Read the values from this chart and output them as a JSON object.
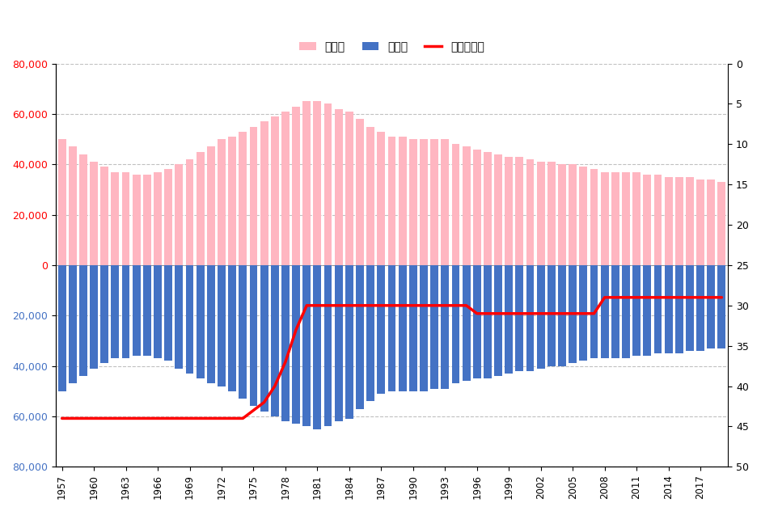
{
  "years": [
    1957,
    1958,
    1959,
    1960,
    1961,
    1962,
    1963,
    1964,
    1965,
    1966,
    1967,
    1968,
    1969,
    1970,
    1971,
    1972,
    1973,
    1974,
    1975,
    1976,
    1977,
    1978,
    1979,
    1980,
    1981,
    1982,
    1983,
    1984,
    1985,
    1986,
    1987,
    1988,
    1989,
    1990,
    1991,
    1992,
    1993,
    1994,
    1995,
    1996,
    1997,
    1998,
    1999,
    2000,
    2001,
    2002,
    2003,
    2004,
    2005,
    2006,
    2007,
    2008,
    2009,
    2010,
    2011,
    2012,
    2013,
    2014,
    2015,
    2016,
    2017,
    2018,
    2019
  ],
  "girls": [
    50000,
    47000,
    44000,
    41000,
    39000,
    37000,
    37000,
    36000,
    36000,
    37000,
    38000,
    40000,
    42000,
    45000,
    47000,
    50000,
    51000,
    53000,
    55000,
    57000,
    59000,
    61000,
    63000,
    65000,
    65000,
    64000,
    62000,
    61000,
    58000,
    55000,
    53000,
    51000,
    51000,
    50000,
    50000,
    50000,
    50000,
    48000,
    47000,
    46000,
    45000,
    44000,
    43000,
    43000,
    42000,
    41000,
    41000,
    40000,
    40000,
    39000,
    38000,
    37000,
    37000,
    37000,
    37000,
    36000,
    36000,
    35000,
    35000,
    35000,
    34000,
    34000,
    33000
  ],
  "boys": [
    50000,
    47000,
    44000,
    41000,
    39000,
    37000,
    37000,
    36000,
    36000,
    37000,
    38000,
    41000,
    43000,
    45000,
    47000,
    48000,
    50000,
    53000,
    56000,
    58000,
    60000,
    62000,
    63000,
    64000,
    65000,
    64000,
    62000,
    61000,
    57000,
    54000,
    51000,
    50000,
    50000,
    50000,
    50000,
    49000,
    49000,
    47000,
    46000,
    45000,
    45000,
    44000,
    43000,
    42000,
    42000,
    41000,
    40000,
    40000,
    39000,
    38000,
    37000,
    37000,
    37000,
    37000,
    36000,
    36000,
    35000,
    35000,
    35000,
    34000,
    34000,
    33000,
    33000
  ],
  "ranking": [
    44,
    44,
    44,
    44,
    44,
    44,
    44,
    44,
    44,
    44,
    44,
    44,
    44,
    44,
    44,
    44,
    44,
    44,
    43,
    42,
    40,
    37,
    33,
    30,
    30,
    30,
    30,
    30,
    30,
    30,
    30,
    30,
    30,
    30,
    30,
    30,
    30,
    30,
    30,
    31,
    31,
    31,
    31,
    31,
    31,
    31,
    31,
    31,
    31,
    31,
    31,
    29,
    29,
    29,
    29,
    29,
    29,
    29,
    29,
    29,
    29,
    29,
    29
  ],
  "left_yticks_pos": [
    80000,
    60000,
    40000,
    20000,
    0
  ],
  "left_yticks_neg": [
    -20000,
    -40000,
    -60000,
    -80000
  ],
  "left_yticklabels_pos": [
    "80,000",
    "60,000",
    "40,000",
    "20,000",
    "0"
  ],
  "left_yticklabels_neg": [
    "20,000",
    "40,000",
    "60,000",
    "80,000"
  ],
  "right_yticks": [
    0,
    5,
    10,
    15,
    20,
    25,
    30,
    35,
    40,
    45,
    50
  ],
  "legend_labels": [
    "女の子",
    "男の子",
    "ランキング"
  ],
  "bar_width": 0.75,
  "girl_color": "#FFB6C1",
  "boy_color": "#4472C4",
  "ranking_color": "#FF0000",
  "left_tick_color_pos": "#FF0000",
  "left_tick_color_neg": "#4472C4",
  "right_tick_color": "#000000",
  "grid_color": "#C0C0C0",
  "background_color": "#FFFFFF",
  "figsize": [
    9.41,
    6.32
  ],
  "dpi": 100
}
